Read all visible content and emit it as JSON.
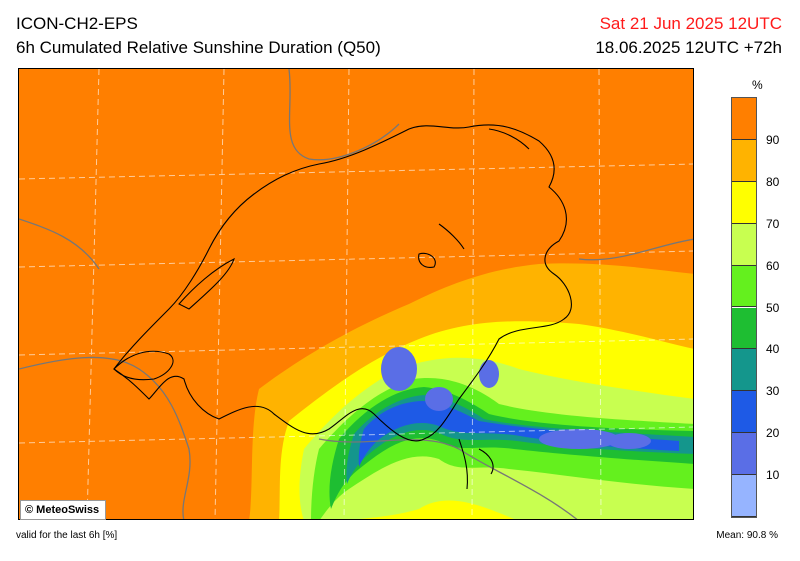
{
  "header": {
    "model": "ICON-CH2-EPS",
    "product": "6h Cumulated Relative Sunshine Duration (Q50)",
    "valid_time": "Sat 21 Jun 2025 12UTC",
    "run": "18.06.2025 12UTC +72h"
  },
  "map": {
    "copyright": "© MeteoSwiss",
    "background_color": "#ff7f00"
  },
  "legend": {
    "unit": "%",
    "ticks": [
      "90",
      "80",
      "70",
      "60",
      "50",
      "40",
      "30",
      "20",
      "10"
    ],
    "bands": [
      {
        "from": 90,
        "to": 100,
        "color": "#ff7f00"
      },
      {
        "from": 80,
        "to": 90,
        "color": "#ffb300"
      },
      {
        "from": 70,
        "to": 80,
        "color": "#ffff00"
      },
      {
        "from": 60,
        "to": 70,
        "color": "#c8ff50"
      },
      {
        "from": 50,
        "to": 60,
        "color": "#64f01e"
      },
      {
        "from": 40,
        "to": 50,
        "color": "#1ebe32"
      },
      {
        "from": 30,
        "to": 40,
        "color": "#14968c"
      },
      {
        "from": 20,
        "to": 30,
        "color": "#1e5ae6"
      },
      {
        "from": 10,
        "to": 20,
        "color": "#5a6ee6"
      },
      {
        "from": 0,
        "to": 10,
        "color": "#96b4ff"
      }
    ]
  },
  "footer": {
    "validity": "valid for the last 6h [%]",
    "mean": "Mean:  90.8 %"
  }
}
